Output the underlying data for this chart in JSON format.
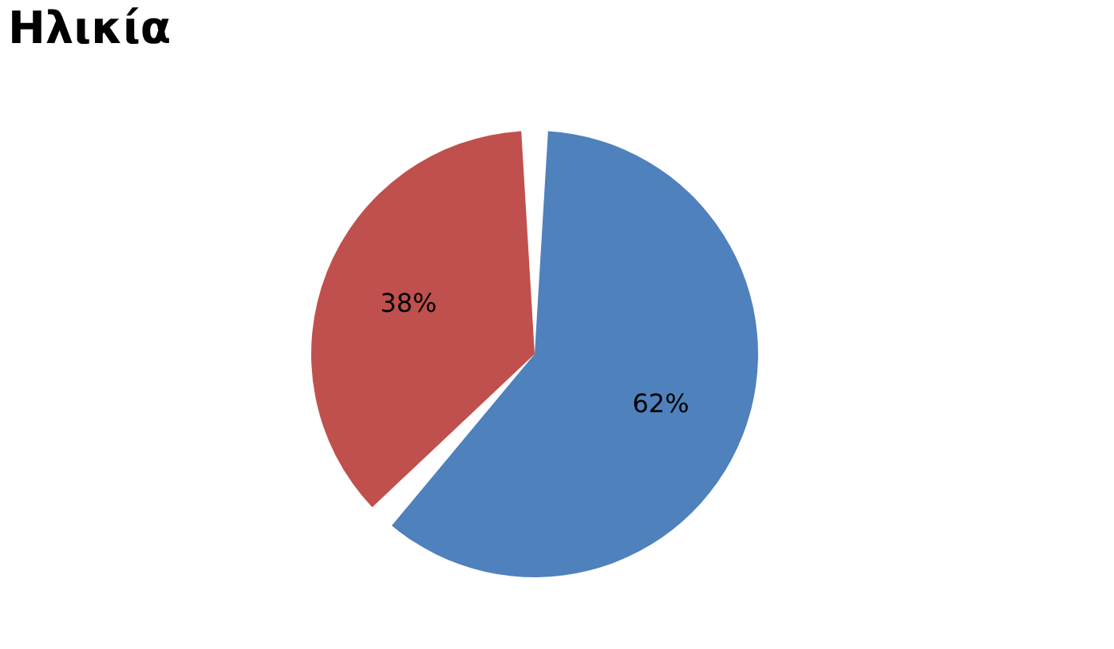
{
  "chart_data": {
    "type": "pie",
    "title": "Ηλικία",
    "categories": [
      null,
      null
    ],
    "values": [
      62,
      38
    ],
    "colors": [
      "#4f81bd",
      "#c0504d"
    ],
    "value_labels": [
      "62%",
      "38%"
    ],
    "legend": false
  }
}
